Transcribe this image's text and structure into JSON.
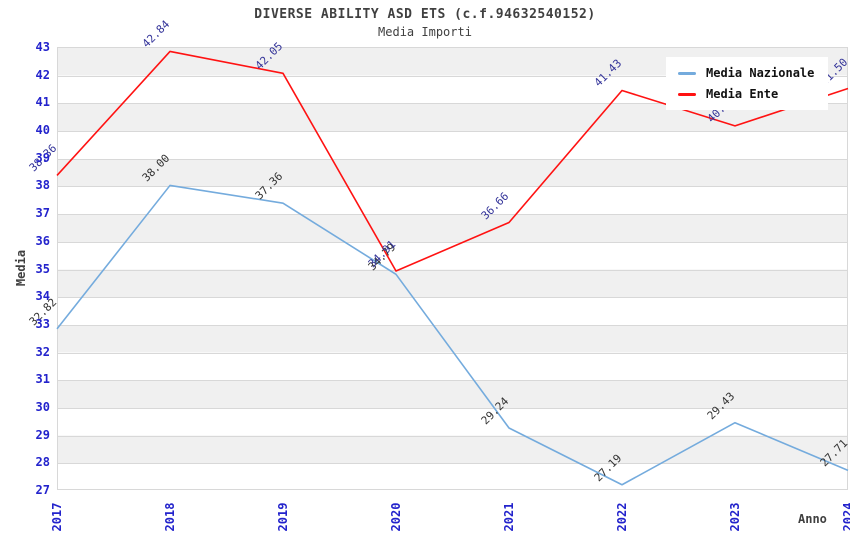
{
  "header": {
    "title": "DIVERSE ABILITY ASD ETS (c.f.94632540152)",
    "subtitle": "Media Importi"
  },
  "chart_data": {
    "type": "line",
    "x": [
      "2017",
      "2018",
      "2019",
      "2020",
      "2021",
      "2022",
      "2023",
      "2024"
    ],
    "series": [
      {
        "name": "Media Nazionale",
        "color": "#74abdd",
        "label_color": "#333333",
        "values": [
          32.82,
          38.0,
          37.36,
          34.79,
          29.24,
          27.19,
          29.43,
          27.71
        ],
        "labels": [
          "32.82",
          "38.00",
          "37.36",
          "34.79",
          "29.24",
          "27.19",
          "29.43",
          "27.71"
        ]
      },
      {
        "name": "Media Ente",
        "color": "#ff1212",
        "label_color": "#333399",
        "values": [
          38.36,
          42.84,
          42.05,
          34.91,
          36.66,
          41.43,
          40.15,
          41.5
        ],
        "labels": [
          "38.36",
          "42.84",
          "42.05",
          "34.91",
          "36.66",
          "41.43",
          "40.15",
          "41.50"
        ]
      }
    ],
    "xlabel": "Anno",
    "ylabel": "Media",
    "ylim": [
      27,
      43
    ],
    "y_tick_step": 1,
    "legend_position": "top-right",
    "grid": "horizontal-bands",
    "band_colors": [
      "#f0f0f0",
      "#ffffff"
    ],
    "gridline_color": "#d8d8d8",
    "tick_label_color": "#2323cc",
    "axis_title_color": "#404040"
  }
}
